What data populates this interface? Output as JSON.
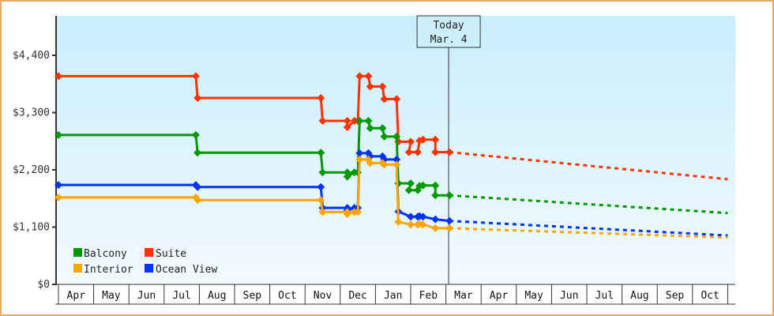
{
  "chart_data": {
    "type": "line",
    "title": "",
    "xlabel": "",
    "ylabel": "",
    "ylim": [
      0,
      5000
    ],
    "y_ticks": [
      {
        "value": 0,
        "label": "$0"
      },
      {
        "value": 1100,
        "label": "$1,100"
      },
      {
        "value": 2200,
        "label": "$2,200"
      },
      {
        "value": 3300,
        "label": "$3,300"
      },
      {
        "value": 4400,
        "label": "$4,400"
      }
    ],
    "x_months": [
      "Apr",
      "May",
      "Jun",
      "Jul",
      "Aug",
      "Sep",
      "Oct",
      "Nov",
      "Dec",
      "Jan",
      "Feb",
      "Mar",
      "Apr",
      "May",
      "Jun",
      "Jul",
      "Aug",
      "Sep",
      "Oct"
    ],
    "today": {
      "line1": "Today",
      "line2": "Mar. 4",
      "month_index": 11.1
    },
    "legend": [
      {
        "name": "Balcony",
        "color": "#009900"
      },
      {
        "name": "Suite",
        "color": "#ff3300"
      },
      {
        "name": "Interior",
        "color": "#ffa500"
      },
      {
        "name": "Ocean View",
        "color": "#0033ff"
      }
    ],
    "series": [
      {
        "name": "Suite",
        "color": "#ff3300",
        "style": "step",
        "points": [
          [
            0.0,
            4000
          ],
          [
            3.9,
            4000
          ],
          [
            3.95,
            3580
          ],
          [
            7.45,
            3580
          ],
          [
            7.5,
            3140
          ],
          [
            8.2,
            3140
          ],
          [
            8.2,
            3020
          ],
          [
            8.4,
            3140
          ],
          [
            8.5,
            3140
          ],
          [
            8.55,
            4000
          ],
          [
            8.8,
            4000
          ],
          [
            8.85,
            3800
          ],
          [
            9.2,
            3800
          ],
          [
            9.25,
            3560
          ],
          [
            9.6,
            3560
          ],
          [
            9.65,
            2740
          ],
          [
            10.0,
            2740
          ],
          [
            9.95,
            2540
          ],
          [
            10.2,
            2540
          ],
          [
            10.25,
            2760
          ],
          [
            10.35,
            2780
          ],
          [
            10.7,
            2780
          ],
          [
            10.7,
            2540
          ],
          [
            11.1,
            2540
          ]
        ],
        "forecast": [
          [
            11.1,
            2540
          ],
          [
            19.0,
            2020
          ]
        ]
      },
      {
        "name": "Balcony",
        "color": "#009900",
        "style": "step",
        "points": [
          [
            0.0,
            2870
          ],
          [
            3.9,
            2870
          ],
          [
            3.95,
            2530
          ],
          [
            7.45,
            2530
          ],
          [
            7.5,
            2150
          ],
          [
            8.2,
            2150
          ],
          [
            8.2,
            2070
          ],
          [
            8.4,
            2150
          ],
          [
            8.5,
            2150
          ],
          [
            8.55,
            3140
          ],
          [
            8.8,
            3140
          ],
          [
            8.85,
            3000
          ],
          [
            9.2,
            3000
          ],
          [
            9.25,
            2840
          ],
          [
            9.6,
            2840
          ],
          [
            9.65,
            1940
          ],
          [
            10.0,
            1940
          ],
          [
            9.95,
            1810
          ],
          [
            10.2,
            1810
          ],
          [
            10.25,
            1890
          ],
          [
            10.35,
            1900
          ],
          [
            10.7,
            1900
          ],
          [
            10.7,
            1710
          ],
          [
            11.1,
            1710
          ]
        ],
        "forecast": [
          [
            11.1,
            1710
          ],
          [
            19.0,
            1370
          ]
        ]
      },
      {
        "name": "Ocean View",
        "color": "#0033ff",
        "style": "step",
        "points": [
          [
            0.0,
            1910
          ],
          [
            3.9,
            1910
          ],
          [
            3.95,
            1870
          ],
          [
            7.45,
            1870
          ],
          [
            7.5,
            1470
          ],
          [
            8.2,
            1470
          ],
          [
            8.2,
            1420
          ],
          [
            8.4,
            1470
          ],
          [
            8.5,
            1470
          ],
          [
            8.55,
            2520
          ],
          [
            8.8,
            2520
          ],
          [
            8.85,
            2460
          ],
          [
            9.2,
            2460
          ],
          [
            9.25,
            2400
          ],
          [
            9.6,
            2400
          ],
          [
            9.65,
            1400
          ],
          [
            10.0,
            1300
          ],
          [
            10.2,
            1300
          ],
          [
            10.25,
            1310
          ],
          [
            10.35,
            1300
          ],
          [
            10.7,
            1250
          ],
          [
            11.1,
            1220
          ]
        ],
        "forecast": [
          [
            11.1,
            1220
          ],
          [
            19.0,
            940
          ]
        ]
      },
      {
        "name": "Interior",
        "color": "#ffa500",
        "style": "step",
        "points": [
          [
            0.0,
            1670
          ],
          [
            3.9,
            1670
          ],
          [
            3.95,
            1620
          ],
          [
            7.45,
            1620
          ],
          [
            7.5,
            1390
          ],
          [
            8.2,
            1390
          ],
          [
            8.2,
            1350
          ],
          [
            8.4,
            1390
          ],
          [
            8.5,
            1390
          ],
          [
            8.55,
            2400
          ],
          [
            8.8,
            2400
          ],
          [
            8.85,
            2330
          ],
          [
            9.2,
            2330
          ],
          [
            9.25,
            2300
          ],
          [
            9.6,
            2300
          ],
          [
            9.65,
            1200
          ],
          [
            10.0,
            1150
          ],
          [
            10.2,
            1150
          ],
          [
            10.25,
            1160
          ],
          [
            10.35,
            1150
          ],
          [
            10.7,
            1080
          ],
          [
            11.1,
            1080
          ]
        ],
        "forecast": [
          [
            11.1,
            1080
          ],
          [
            19.0,
            900
          ]
        ]
      }
    ]
  }
}
